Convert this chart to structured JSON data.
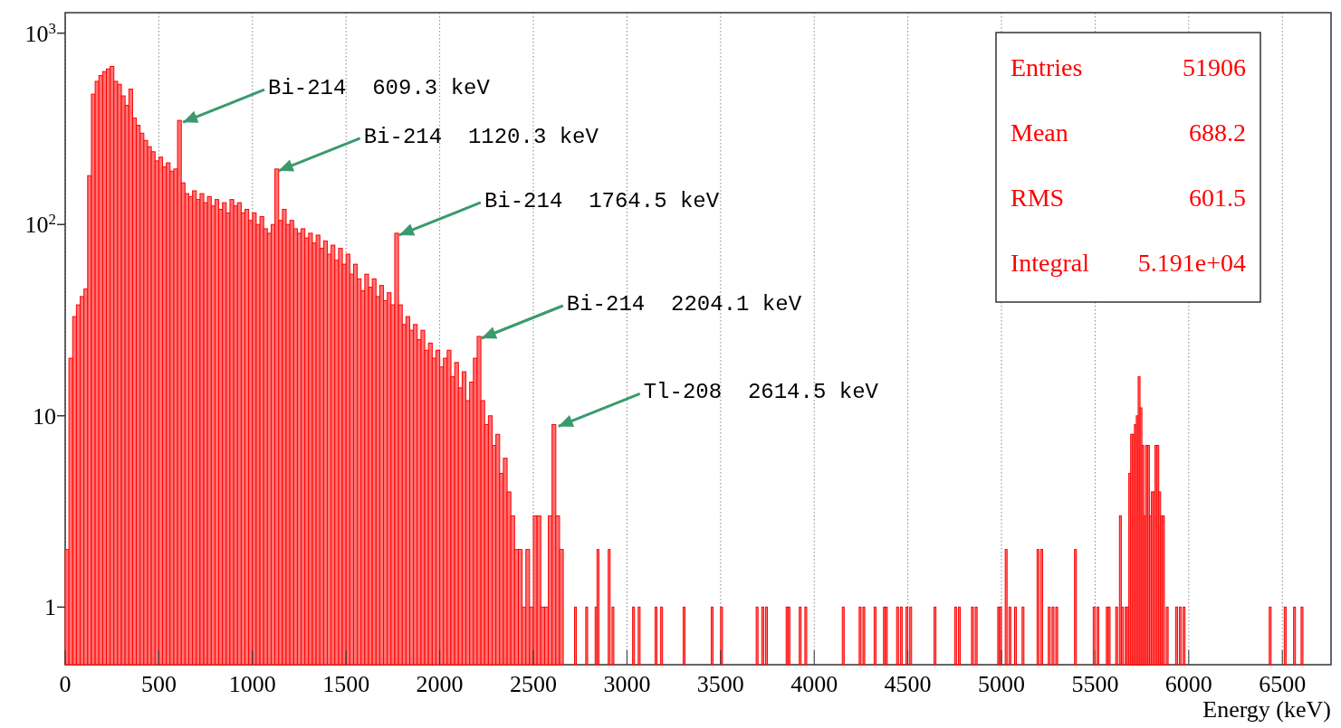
{
  "chart_data": {
    "type": "histogram",
    "xlabel": "Energy (keV)",
    "bins": [
      0,
      20,
      40,
      60,
      80,
      100,
      120,
      140,
      160,
      180,
      200,
      220,
      240,
      260,
      280,
      300,
      320,
      340,
      360,
      380,
      400,
      420,
      440,
      460,
      480,
      500,
      520,
      540,
      560,
      580,
      600,
      620,
      640,
      660,
      680,
      700,
      720,
      740,
      760,
      780,
      800,
      820,
      840,
      860,
      880,
      900,
      920,
      940,
      960,
      980,
      1000,
      1020,
      1040,
      1060,
      1080,
      1100,
      1120,
      1140,
      1160,
      1180,
      1200,
      1220,
      1240,
      1260,
      1280,
      1300,
      1320,
      1340,
      1360,
      1380,
      1400,
      1420,
      1440,
      1460,
      1480,
      1500,
      1520,
      1540,
      1560,
      1580,
      1600,
      1620,
      1640,
      1660,
      1680,
      1700,
      1720,
      1740,
      1760,
      1780,
      1800,
      1820,
      1840,
      1860,
      1880,
      1900,
      1920,
      1940,
      1960,
      1980,
      2000,
      2020,
      2040,
      2060,
      2080,
      2100,
      2120,
      2140,
      2160,
      2180,
      2200,
      2220,
      2240,
      2260,
      2280,
      2300,
      2320,
      2340,
      2360,
      2380,
      2400,
      2420,
      2440,
      2460,
      2480,
      2500,
      2520,
      2540,
      2560,
      2580,
      2600,
      2620,
      2640,
      2660,
      2720,
      2730,
      2780,
      2790,
      2830,
      2840,
      2850,
      2900,
      2910,
      2920,
      2930,
      3030,
      3040,
      3060,
      3070,
      3150,
      3160,
      3180,
      3190,
      3300,
      3310,
      3450,
      3460,
      3500,
      3510,
      3690,
      3700,
      3720,
      3730,
      3740,
      3750,
      3850,
      3860,
      3870,
      3920,
      3930,
      3950,
      3960,
      4150,
      4160,
      4240,
      4250,
      4260,
      4270,
      4320,
      4330,
      4370,
      4380,
      4390,
      4440,
      4450,
      4460,
      4470,
      4490,
      4500,
      4510,
      4520,
      4640,
      4650,
      4750,
      4760,
      4770,
      4780,
      4840,
      4850,
      4860,
      4870,
      4980,
      4990,
      5000,
      5020,
      5030,
      5040,
      5050,
      5070,
      5080,
      5110,
      5120,
      5190,
      5200,
      5210,
      5220,
      5250,
      5260,
      5270,
      5280,
      5290,
      5300,
      5390,
      5400,
      5490,
      5500,
      5510,
      5520,
      5560,
      5570,
      5580,
      5610,
      5620,
      5630,
      5640,
      5650,
      5660,
      5670,
      5680,
      5690,
      5700,
      5710,
      5720,
      5730,
      5740,
      5750,
      5760,
      5770,
      5780,
      5790,
      5800,
      5810,
      5820,
      5830,
      5840,
      5850,
      5860,
      5870,
      5880,
      5890,
      5930,
      5940,
      5950,
      5960,
      5970,
      5980,
      6430,
      6440,
      6510,
      6520,
      6560,
      6570,
      6600,
      6610
    ],
    "values": [
      2,
      20,
      33,
      38,
      42,
      46,
      180,
      480,
      560,
      600,
      630,
      650,
      670,
      560,
      540,
      470,
      420,
      510,
      360,
      330,
      300,
      275,
      255,
      240,
      215,
      225,
      200,
      210,
      190,
      195,
      350,
      165,
      145,
      140,
      150,
      135,
      145,
      130,
      140,
      125,
      135,
      120,
      130,
      115,
      135,
      125,
      130,
      115,
      120,
      105,
      115,
      100,
      110,
      95,
      90,
      100,
      195,
      105,
      120,
      100,
      105,
      95,
      90,
      95,
      85,
      90,
      80,
      88,
      75,
      82,
      70,
      78,
      65,
      75,
      62,
      70,
      55,
      62,
      52,
      45,
      55,
      47,
      52,
      42,
      48,
      40,
      44,
      38,
      90,
      38,
      30,
      33,
      28,
      30,
      25,
      28,
      22,
      24,
      20,
      22,
      18,
      20,
      22,
      16,
      19,
      14,
      17,
      12,
      15,
      20,
      26,
      12,
      9,
      10,
      7,
      8,
      5,
      6,
      4,
      3,
      2,
      2,
      1,
      2,
      1,
      3,
      3,
      1,
      1,
      3,
      9,
      3,
      2,
      null,
      1,
      null,
      1,
      null,
      1,
      2,
      null,
      2,
      null,
      1,
      null,
      1,
      null,
      1,
      null,
      1,
      null,
      1,
      null,
      1,
      null,
      1,
      null,
      1,
      null,
      1,
      null,
      1,
      null,
      1,
      null,
      1,
      1,
      null,
      1,
      null,
      1,
      null,
      1,
      null,
      1,
      null,
      1,
      null,
      1,
      null,
      1,
      1,
      null,
      1,
      null,
      1,
      null,
      1,
      null,
      1,
      null,
      1,
      null,
      1,
      null,
      1,
      null,
      1,
      null,
      1,
      null,
      1,
      1,
      null,
      2,
      null,
      1,
      null,
      1,
      null,
      1,
      null,
      2,
      null,
      2,
      null,
      1,
      null,
      1,
      null,
      1,
      null,
      2,
      null,
      1,
      null,
      1,
      null,
      1,
      1,
      null,
      1,
      null,
      3,
      1,
      null,
      1,
      1,
      5,
      8,
      8,
      9,
      10,
      16,
      11,
      7,
      3,
      7,
      7,
      3,
      4,
      4,
      7,
      7,
      4,
      3,
      3,
      null,
      1,
      null,
      1,
      null,
      1,
      null,
      1,
      null,
      1,
      null,
      1,
      null,
      1,
      null,
      1
    ],
    "color": "#ff0000",
    "log": "y",
    "grid": "x",
    "xlim": [
      0,
      6760
    ],
    "xticks": [
      0,
      500,
      1000,
      1500,
      2000,
      2500,
      3000,
      3500,
      4000,
      4500,
      5000,
      5500,
      6000,
      6500
    ],
    "ylim": [
      0.5,
      1280
    ],
    "yticks": [
      1,
      10,
      {
        "value": 100,
        "label": "10$^{2}$"
      },
      {
        "value": 1000,
        "label": "10$^{3}$"
      }
    ],
    "annotations": [
      {
        "text": "Bi-214  609.3 keV",
        "x": 609.3,
        "y": 350
      },
      {
        "text": "Bi-214  1120.3 keV",
        "x": 1120.3,
        "y": 195
      },
      {
        "text": "Bi-214  1764.5 keV",
        "x": 1764.5,
        "y": 90
      },
      {
        "text": "Bi-214  2204.1 keV",
        "x": 2204.1,
        "y": 26
      },
      {
        "text": "Tl-208  2614.5 keV",
        "x": 2614.5,
        "y": 9
      },
      "Entries 51906",
      "Mean 688.2",
      "RMS 601.5",
      "Integral 5.191e+04"
    ]
  }
}
